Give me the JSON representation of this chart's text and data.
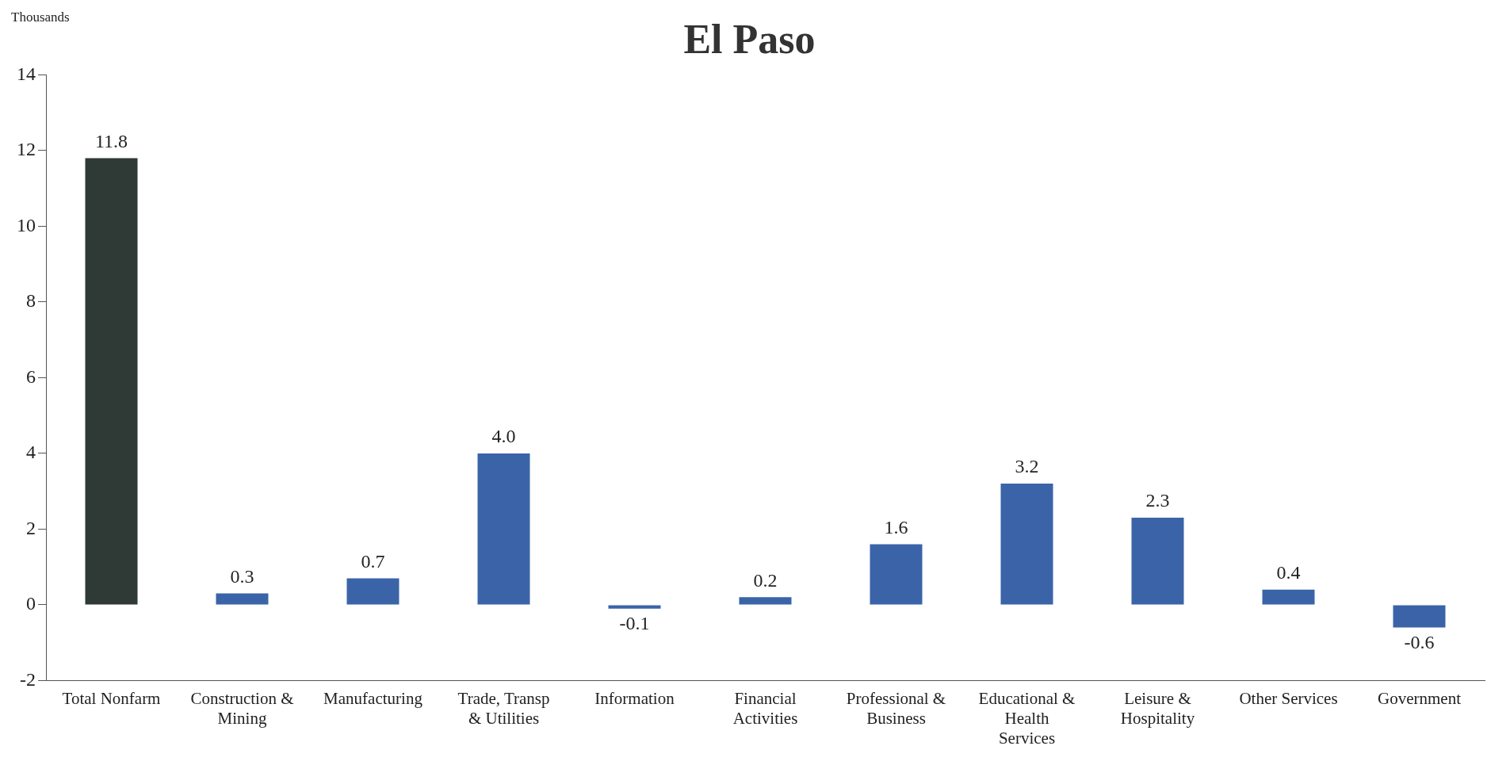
{
  "chart_data": {
    "type": "bar",
    "title": "El Paso",
    "ylabel": "Thousands",
    "categories": [
      "Total Nonfarm",
      "Construction & Mining",
      "Manufacturing",
      "Trade, Transp & Utilities",
      "Information",
      "Financial Activities",
      "Professional & Business",
      "Educational & Health Services",
      "Leisure & Hospitality",
      "Other Services",
      "Government"
    ],
    "values": [
      11.8,
      0.3,
      0.7,
      4.0,
      -0.1,
      0.2,
      1.6,
      3.2,
      2.3,
      0.4,
      -0.6
    ],
    "colors": [
      "#2f3936",
      "#3b64a8",
      "#3b64a8",
      "#3b64a8",
      "#3b64a8",
      "#3b64a8",
      "#3b64a8",
      "#3b64a8",
      "#3b64a8",
      "#3b64a8",
      "#3b64a8"
    ],
    "value_labels": [
      "11.8",
      "0.3",
      "0.7",
      "4.0",
      "-0.1",
      "0.2",
      "1.6",
      "3.2",
      "2.3",
      "0.4",
      "-0.6"
    ],
    "ylim": [
      -2,
      14
    ],
    "yticks": [
      -2,
      0,
      2,
      4,
      6,
      8,
      10,
      12,
      14
    ],
    "grid": false,
    "legend": false
  }
}
